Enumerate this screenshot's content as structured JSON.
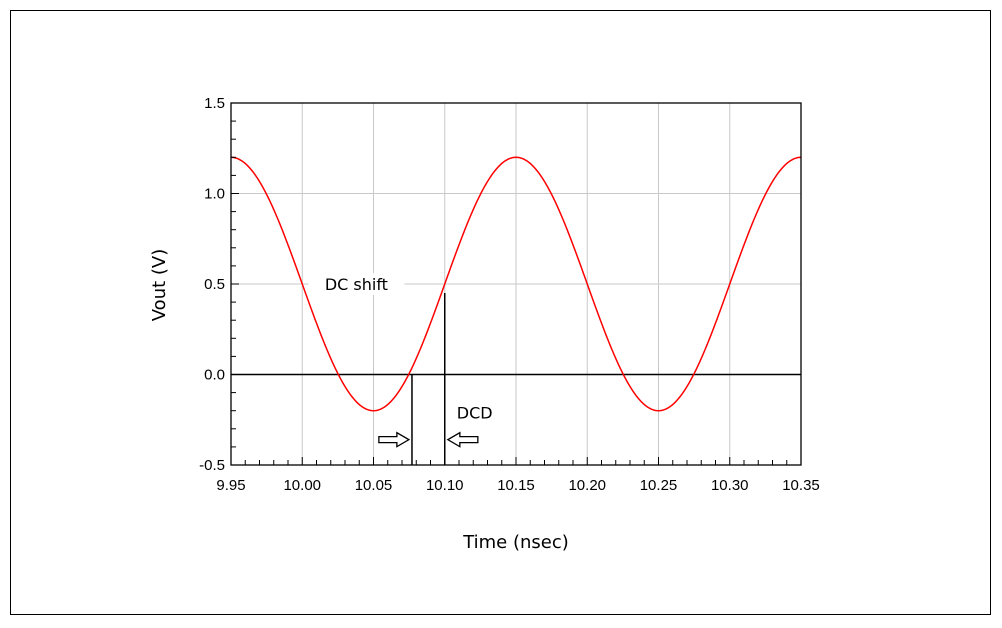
{
  "chart_data": {
    "type": "line",
    "title": "",
    "xlabel": "Time (nsec)",
    "ylabel": "Vout (V)",
    "xlim": [
      9.95,
      10.35
    ],
    "ylim": [
      -0.5,
      1.5
    ],
    "grid": true,
    "x_ticks": [
      "9.95",
      "10.00",
      "10.05",
      "10.10",
      "10.15",
      "10.20",
      "10.25",
      "10.30",
      "10.35"
    ],
    "y_ticks": [
      "1.5",
      "1.0",
      "0.5",
      "0.0",
      "-0.5"
    ],
    "series": [
      {
        "color": "#ff0000",
        "waveform": {
          "dc_offset": 0.5,
          "amplitude": 0.7,
          "period": 0.2,
          "peak_time": 10.15
        },
        "x": [
          9.95,
          10.0,
          10.05,
          10.075,
          10.1,
          10.15,
          10.2,
          10.25,
          10.3,
          10.35
        ],
        "y": [
          1.2,
          0.5,
          -0.2,
          0.0,
          0.45,
          1.2,
          0.5,
          -0.2,
          0.5,
          1.2
        ]
      }
    ],
    "reference_line": {
      "y": 0.0,
      "color": "#000000"
    },
    "markers": [
      {
        "x": 10.077,
        "y_from": -0.5,
        "y_to": 0.0
      },
      {
        "x": 10.1,
        "y_from": -0.5,
        "y_to": 0.45
      }
    ],
    "annotations": [
      {
        "text": "DC shift",
        "x": 10.038,
        "y": 0.5
      },
      {
        "text": "DCD",
        "x": 10.121,
        "y": -0.21
      }
    ],
    "arrows": [
      {
        "direction": "right",
        "x": 10.065,
        "y": -0.36
      },
      {
        "direction": "left",
        "x": 10.112,
        "y": -0.36
      }
    ]
  }
}
